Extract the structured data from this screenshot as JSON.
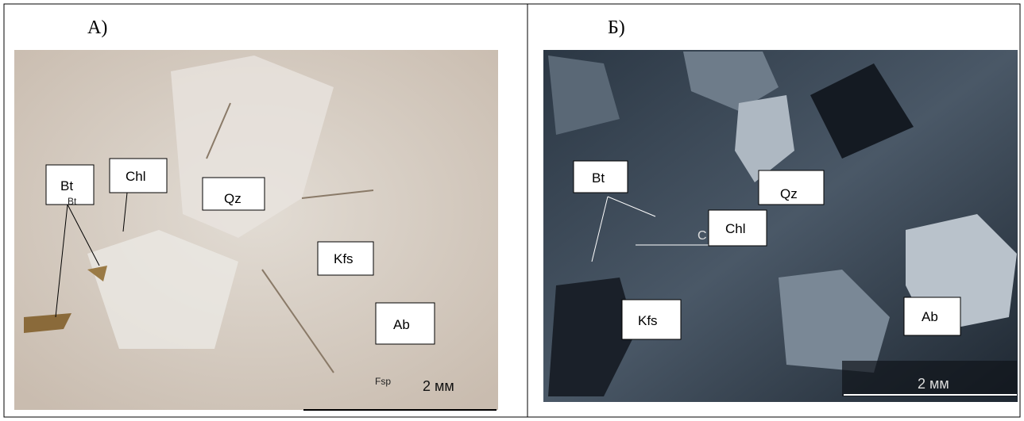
{
  "panels": [
    {
      "label": "А)",
      "minerals": [
        "Bt",
        "Chl",
        "Qz",
        "Kfs",
        "Ab"
      ],
      "small_labels": [
        "Bt",
        "Fsp"
      ],
      "scale": "2 мм"
    },
    {
      "label": "Б)",
      "minerals": [
        "Bt",
        "Qz",
        "Chl",
        "Kfs",
        "Ab"
      ],
      "small_labels": [
        "C"
      ],
      "scale": "2 мм"
    }
  ]
}
